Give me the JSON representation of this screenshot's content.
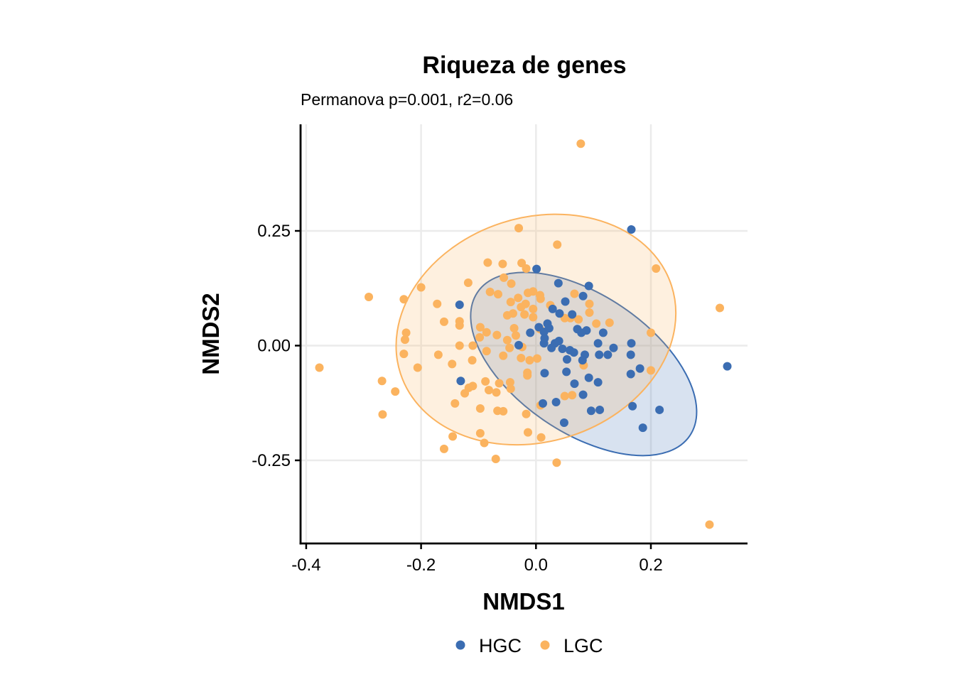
{
  "chart_data": {
    "type": "scatter",
    "title": "Riqueza de genes",
    "subtitle": "Permanova p=0.001, r2=0.06",
    "xlabel": "NMDS1",
    "ylabel": "NMDS2",
    "xlim": [
      -0.41,
      0.365
    ],
    "ylim": [
      -0.43,
      0.48
    ],
    "x_ticks": [
      -0.4,
      -0.2,
      0.0,
      0.2
    ],
    "x_tick_labels": [
      "-0.4",
      "-0.2",
      "0.0",
      "0.2"
    ],
    "y_ticks": [
      -0.25,
      0.0,
      0.25
    ],
    "y_tick_labels": [
      "-0.25",
      "0.00",
      "0.25"
    ],
    "grid": true,
    "legend_position": "bottom",
    "series": [
      {
        "name": "HGC",
        "color": "#3B6DB2",
        "ellipse": {
          "center": [
            0.083,
            -0.04
          ],
          "radii": [
            0.223,
            0.12
          ],
          "angle_deg": -34
        },
        "points": [
          [
            0.166,
            0.253
          ],
          [
            0.001,
            0.167
          ],
          [
            0.039,
            0.136
          ],
          [
            0.092,
            0.13
          ],
          [
            0.082,
            0.108
          ],
          [
            0.051,
            0.096
          ],
          [
            0.029,
            0.08
          ],
          [
            0.041,
            0.07
          ],
          [
            0.063,
            0.068
          ],
          [
            0.02,
            0.048
          ],
          [
            0.005,
            0.04
          ],
          [
            0.023,
            0.038
          ],
          [
            0.014,
            0.03
          ],
          [
            -0.01,
            0.028
          ],
          [
            0.072,
            0.036
          ],
          [
            0.088,
            0.033
          ],
          [
            0.079,
            0.028
          ],
          [
            0.117,
            0.028
          ],
          [
            0.015,
            0.016
          ],
          [
            0.014,
            0.005
          ],
          [
            0.033,
            0.005
          ],
          [
            0.027,
            -0.005
          ],
          [
            0.046,
            -0.007
          ],
          [
            0.059,
            -0.01
          ],
          [
            0.066,
            -0.015
          ],
          [
            0.085,
            -0.02
          ],
          [
            0.108,
            0.005
          ],
          [
            0.135,
            -0.005
          ],
          [
            0.125,
            -0.02
          ],
          [
            0.166,
            0.005
          ],
          [
            0.165,
            -0.02
          ],
          [
            0.11,
            -0.02
          ],
          [
            0.054,
            -0.03
          ],
          [
            0.081,
            -0.032
          ],
          [
            0.053,
            -0.057
          ],
          [
            0.015,
            -0.06
          ],
          [
            0.092,
            -0.07
          ],
          [
            0.108,
            -0.08
          ],
          [
            0.067,
            -0.083
          ],
          [
            0.082,
            -0.107
          ],
          [
            0.181,
            -0.05
          ],
          [
            0.165,
            -0.062
          ],
          [
            0.215,
            -0.14
          ],
          [
            0.186,
            -0.179
          ],
          [
            0.168,
            -0.132
          ],
          [
            0.111,
            -0.14
          ],
          [
            0.096,
            -0.142
          ],
          [
            0.049,
            -0.168
          ],
          [
            0.035,
            -0.123
          ],
          [
            0.012,
            -0.126
          ],
          [
            -0.03,
            0.001
          ],
          [
            -0.133,
            0.089
          ],
          [
            -0.131,
            -0.077
          ],
          [
            0.333,
            -0.045
          ],
          [
            0.04,
            0.01
          ]
        ]
      },
      {
        "name": "LGC",
        "color": "#FBB35F",
        "ellipse": {
          "center": [
            0.0,
            0.035
          ],
          "radii": [
            0.248,
            0.195
          ],
          "angle_deg": 18
        },
        "points": [
          [
            0.078,
            0.44
          ],
          [
            -0.03,
            0.256
          ],
          [
            0.037,
            0.22
          ],
          [
            -0.084,
            0.181
          ],
          [
            -0.058,
            0.178
          ],
          [
            -0.025,
            0.18
          ],
          [
            -0.017,
            0.168
          ],
          [
            -0.056,
            0.148
          ],
          [
            -0.043,
            0.135
          ],
          [
            -0.118,
            0.137
          ],
          [
            -0.2,
            0.127
          ],
          [
            -0.291,
            0.106
          ],
          [
            -0.23,
            0.101
          ],
          [
            -0.172,
            0.091
          ],
          [
            -0.08,
            0.117
          ],
          [
            -0.066,
            0.112
          ],
          [
            -0.044,
            0.095
          ],
          [
            -0.031,
            0.104
          ],
          [
            -0.014,
            0.115
          ],
          [
            -0.005,
            0.118
          ],
          [
            0.007,
            0.11
          ],
          [
            0.008,
            0.102
          ],
          [
            -0.018,
            0.091
          ],
          [
            -0.026,
            0.084
          ],
          [
            -0.005,
            0.08
          ],
          [
            0.025,
            0.088
          ],
          [
            0.067,
            0.113
          ],
          [
            0.093,
            0.091
          ],
          [
            0.093,
            0.072
          ],
          [
            0.074,
            0.057
          ],
          [
            0.06,
            0.06
          ],
          [
            0.05,
            0.06
          ],
          [
            0.105,
            0.048
          ],
          [
            0.128,
            0.05
          ],
          [
            -0.04,
            0.07
          ],
          [
            -0.05,
            0.066
          ],
          [
            -0.02,
            0.068
          ],
          [
            -0.005,
            0.062
          ],
          [
            -0.16,
            0.052
          ],
          [
            -0.133,
            0.053
          ],
          [
            -0.133,
            0.044
          ],
          [
            -0.097,
            0.04
          ],
          [
            -0.038,
            0.038
          ],
          [
            0.007,
            0.036
          ],
          [
            -0.05,
            0.012
          ],
          [
            -0.068,
            0.023
          ],
          [
            -0.086,
            0.029
          ],
          [
            -0.098,
            0.018
          ],
          [
            -0.226,
            0.028
          ],
          [
            -0.228,
            0.013
          ],
          [
            -0.133,
            0.0
          ],
          [
            -0.11,
            0.0
          ],
          [
            -0.046,
            -0.005
          ],
          [
            -0.024,
            -0.003
          ],
          [
            -0.086,
            -0.012
          ],
          [
            -0.17,
            -0.02
          ],
          [
            -0.23,
            -0.018
          ],
          [
            -0.206,
            -0.048
          ],
          [
            -0.146,
            -0.04
          ],
          [
            -0.111,
            -0.032
          ],
          [
            -0.057,
            -0.022
          ],
          [
            -0.026,
            -0.027
          ],
          [
            -0.011,
            -0.032
          ],
          [
            -0.015,
            -0.059
          ],
          [
            -0.015,
            -0.065
          ],
          [
            -0.045,
            -0.08
          ],
          [
            -0.064,
            -0.082
          ],
          [
            -0.088,
            -0.078
          ],
          [
            -0.11,
            -0.088
          ],
          [
            -0.117,
            -0.092
          ],
          [
            -0.082,
            -0.097
          ],
          [
            -0.044,
            -0.094
          ],
          [
            -0.069,
            -0.102
          ],
          [
            0.05,
            -0.11
          ],
          [
            0.063,
            -0.108
          ],
          [
            -0.124,
            -0.104
          ],
          [
            -0.141,
            -0.126
          ],
          [
            -0.268,
            -0.077
          ],
          [
            -0.245,
            -0.1
          ],
          [
            -0.267,
            -0.15
          ],
          [
            -0.377,
            -0.048
          ],
          [
            -0.097,
            -0.137
          ],
          [
            -0.067,
            -0.142
          ],
          [
            -0.057,
            -0.143
          ],
          [
            -0.017,
            -0.149
          ],
          [
            0.008,
            -0.13
          ],
          [
            -0.097,
            -0.191
          ],
          [
            -0.09,
            -0.212
          ],
          [
            -0.145,
            -0.198
          ],
          [
            -0.16,
            -0.225
          ],
          [
            -0.014,
            -0.189
          ],
          [
            0.009,
            -0.2
          ],
          [
            -0.07,
            -0.247
          ],
          [
            0.036,
            -0.255
          ],
          [
            0.209,
            0.168
          ],
          [
            0.32,
            0.082
          ],
          [
            0.2,
            0.028
          ],
          [
            0.2,
            -0.054
          ],
          [
            0.302,
            -0.39
          ],
          [
            0.083,
            -0.043
          ],
          [
            0.002,
            -0.028
          ],
          [
            -0.035,
            0.022
          ]
        ]
      }
    ]
  }
}
